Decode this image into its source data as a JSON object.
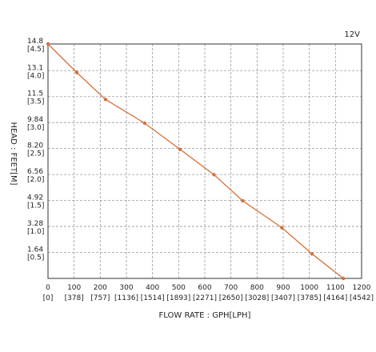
{
  "chart_data": {
    "type": "line",
    "corner_label": "12V",
    "xlabel": "FLOW RATE : GPH[LPH]",
    "ylabel": "HEAD : FEET[M]",
    "xlim": [
      0,
      1200
    ],
    "ylim": [
      0,
      14.8
    ],
    "x_ticks": [
      {
        "value": 0,
        "label": "0",
        "sub": "[0]"
      },
      {
        "value": 100,
        "label": "100",
        "sub": "[378]"
      },
      {
        "value": 200,
        "label": "200",
        "sub": "[757]"
      },
      {
        "value": 300,
        "label": "300",
        "sub": "[1136]"
      },
      {
        "value": 400,
        "label": "400",
        "sub": "[1514]"
      },
      {
        "value": 500,
        "label": "500",
        "sub": "[1893]"
      },
      {
        "value": 600,
        "label": "600",
        "sub": "[2271]"
      },
      {
        "value": 700,
        "label": "700",
        "sub": "[2650]"
      },
      {
        "value": 800,
        "label": "800",
        "sub": "[3028]"
      },
      {
        "value": 900,
        "label": "900",
        "sub": "[3407]"
      },
      {
        "value": 1000,
        "label": "1000",
        "sub": "[3785]"
      },
      {
        "value": 1100,
        "label": "1100",
        "sub": "[4164]"
      },
      {
        "value": 1200,
        "label": "1200",
        "sub": "[4542]"
      }
    ],
    "y_ticks": [
      {
        "value": 14.8,
        "label": "14.8",
        "sub": "[4.5]"
      },
      {
        "value": 13.12,
        "label": "13.1",
        "sub": "[4.0]"
      },
      {
        "value": 11.48,
        "label": "11.5",
        "sub": "[3.5]"
      },
      {
        "value": 9.84,
        "label": "9.84",
        "sub": "[3.0]"
      },
      {
        "value": 8.2,
        "label": "8.20",
        "sub": "[2.5]"
      },
      {
        "value": 6.56,
        "label": "6.56",
        "sub": "[2.0]"
      },
      {
        "value": 4.92,
        "label": "4.92",
        "sub": "[1.5]"
      },
      {
        "value": 3.28,
        "label": "3.28",
        "sub": "[1.0]"
      },
      {
        "value": 1.64,
        "label": "1.64",
        "sub": "[0.5]"
      }
    ],
    "grid": true,
    "series": [
      {
        "color": "#d4703a",
        "points": [
          {
            "x": 0,
            "y": 14.8
          },
          {
            "x": 110,
            "y": 13.0
          },
          {
            "x": 220,
            "y": 11.3
          },
          {
            "x": 370,
            "y": 9.8
          },
          {
            "x": 505,
            "y": 8.15
          },
          {
            "x": 635,
            "y": 6.55
          },
          {
            "x": 745,
            "y": 4.9
          },
          {
            "x": 895,
            "y": 3.2
          },
          {
            "x": 1010,
            "y": 1.55
          },
          {
            "x": 1130,
            "y": 0
          }
        ]
      }
    ]
  }
}
